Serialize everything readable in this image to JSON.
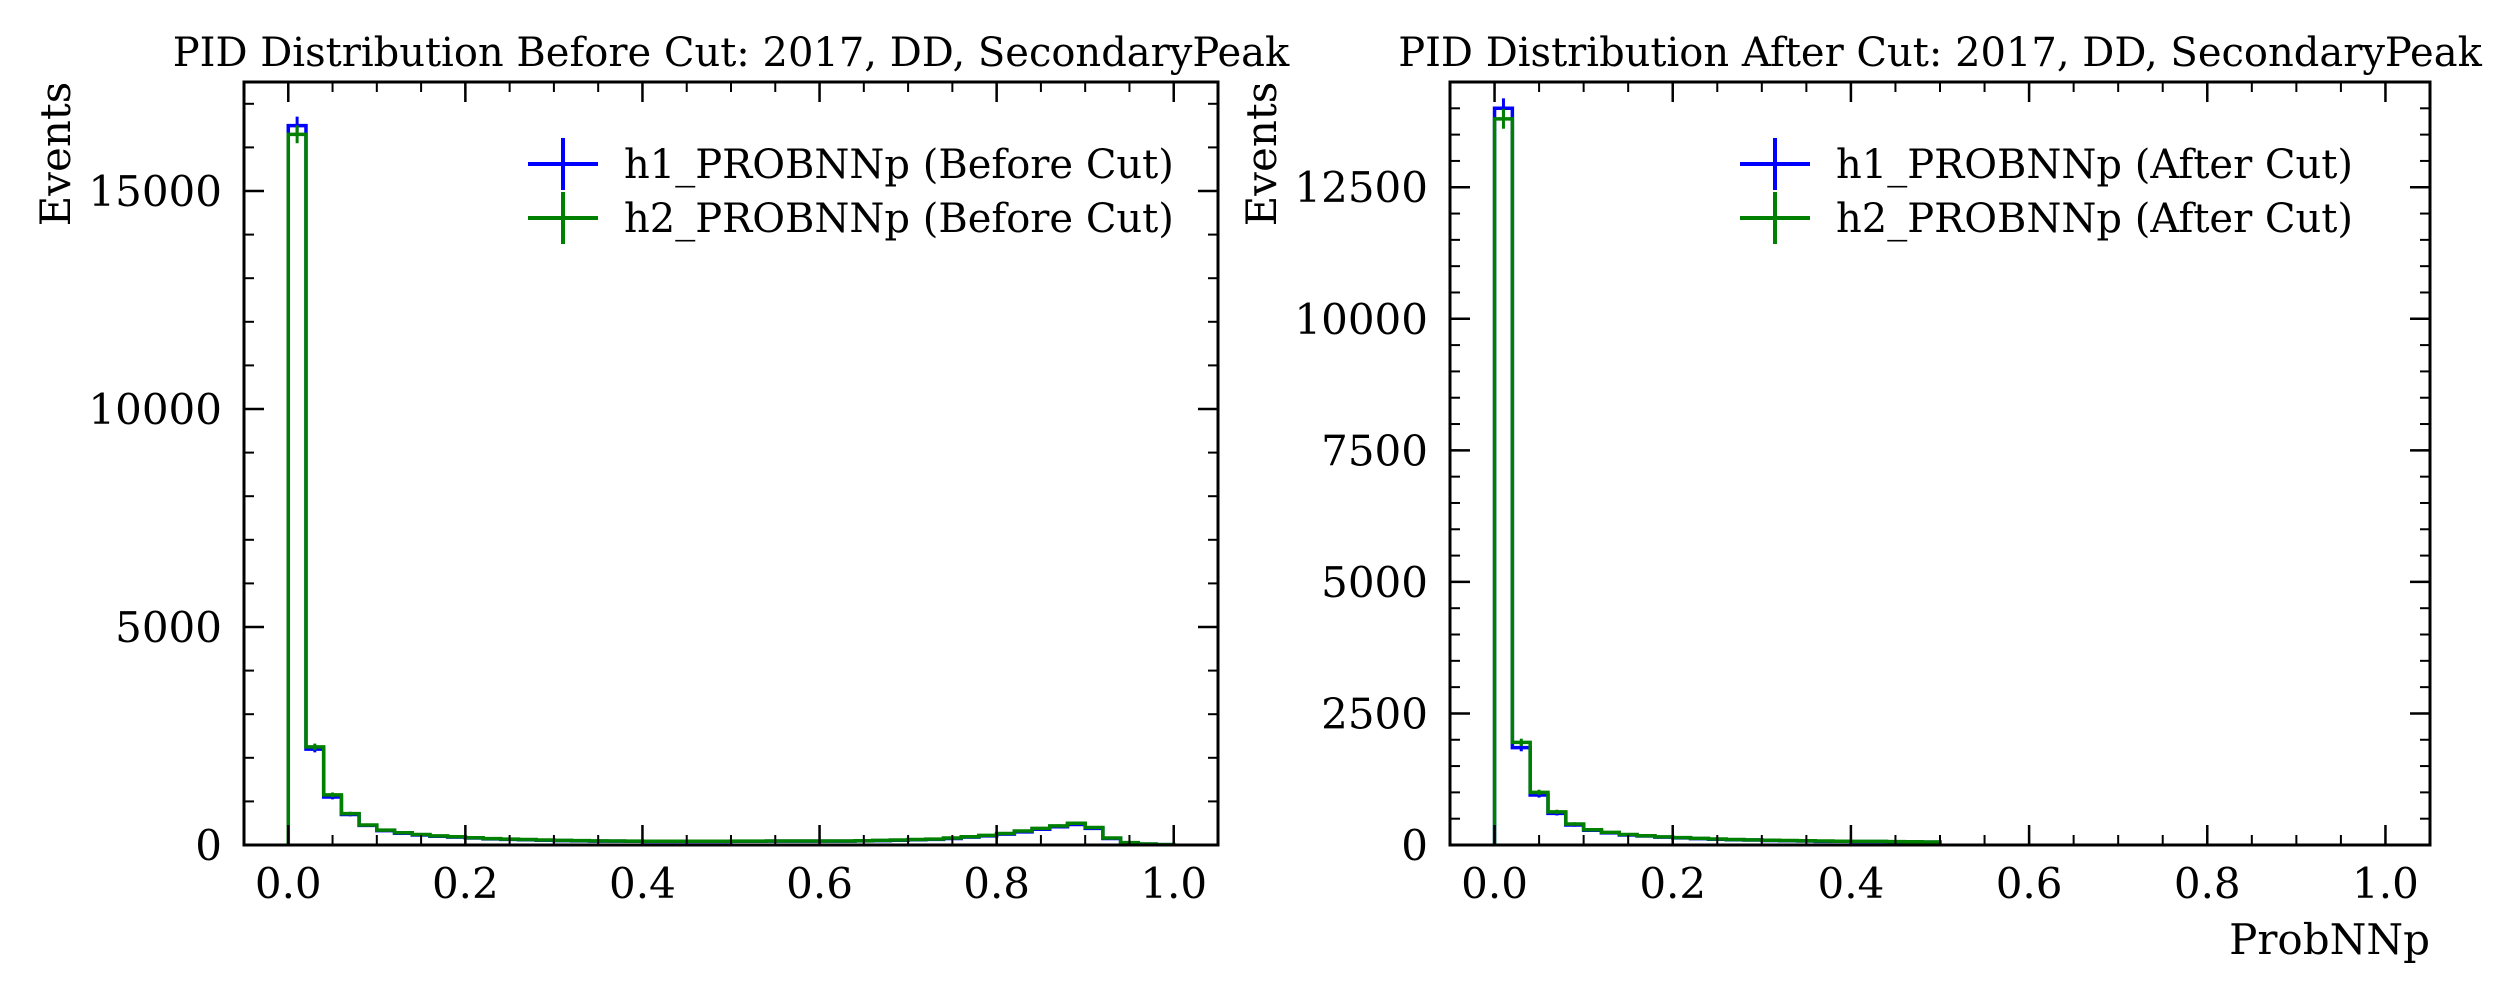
{
  "colors": {
    "h1": "#0000ff",
    "h2": "#008000",
    "axis": "#000000"
  },
  "chart_data": [
    {
      "type": "histogram",
      "title": "PID Distribution Before Cut: 2017, DD, SecondaryPeak",
      "xlabel": "",
      "ylabel": "Events",
      "xlim": [
        -0.05,
        1.05
      ],
      "ylim": [
        0,
        17500
      ],
      "xticks": [
        0.0,
        0.2,
        0.4,
        0.6,
        0.8,
        1.0
      ],
      "xtick_labels": [
        "0.0",
        "0.2",
        "0.4",
        "0.6",
        "0.8",
        "1.0"
      ],
      "yticks": [
        0,
        5000,
        10000,
        15000
      ],
      "ytick_labels": [
        "0",
        "5000",
        "10000",
        "15000"
      ],
      "legend_position": "top-right",
      "bin_edges": [
        0.0,
        0.02,
        0.04,
        0.06,
        0.08,
        0.1,
        0.12,
        0.14,
        0.16,
        0.18,
        0.2,
        0.22,
        0.24,
        0.26,
        0.28,
        0.3,
        0.32,
        0.34,
        0.36,
        0.38,
        0.4,
        0.42,
        0.44,
        0.46,
        0.48,
        0.5,
        0.52,
        0.54,
        0.56,
        0.58,
        0.6,
        0.62,
        0.64,
        0.66,
        0.68,
        0.7,
        0.72,
        0.74,
        0.76,
        0.78,
        0.8,
        0.82,
        0.84,
        0.86,
        0.88,
        0.9,
        0.92,
        0.94,
        0.96,
        0.98,
        1.0
      ],
      "series": [
        {
          "name": "h1_PROBNNp (Before Cut)",
          "color_key": "h1",
          "values": [
            16500,
            2200,
            1100,
            700,
            450,
            330,
            270,
            230,
            200,
            180,
            160,
            140,
            130,
            120,
            110,
            100,
            95,
            90,
            90,
            85,
            80,
            80,
            80,
            80,
            80,
            85,
            85,
            90,
            90,
            90,
            90,
            90,
            95,
            100,
            110,
            120,
            130,
            150,
            180,
            210,
            250,
            300,
            360,
            420,
            470,
            380,
            150,
            50,
            20,
            10
          ]
        },
        {
          "name": "h2_PROBNNp (Before Cut)",
          "color_key": "h2",
          "values": [
            16300,
            2250,
            1150,
            720,
            460,
            340,
            280,
            240,
            210,
            190,
            165,
            145,
            135,
            125,
            115,
            105,
            100,
            95,
            92,
            88,
            85,
            85,
            85,
            85,
            85,
            88,
            88,
            92,
            92,
            92,
            92,
            92,
            98,
            105,
            115,
            125,
            135,
            160,
            190,
            220,
            265,
            320,
            380,
            440,
            500,
            400,
            160,
            55,
            22,
            10
          ]
        }
      ]
    },
    {
      "type": "histogram",
      "title": "PID Distribution After Cut: 2017, DD, SecondaryPeak",
      "xlabel": "ProbNNp",
      "ylabel": "Events",
      "xlim": [
        -0.05,
        1.05
      ],
      "ylim": [
        0,
        14500
      ],
      "xticks": [
        0.0,
        0.2,
        0.4,
        0.6,
        0.8,
        1.0
      ],
      "xtick_labels": [
        "0.0",
        "0.2",
        "0.4",
        "0.6",
        "0.8",
        "1.0"
      ],
      "yticks": [
        0,
        2500,
        5000,
        7500,
        10000,
        12500
      ],
      "ytick_labels": [
        "0",
        "2500",
        "5000",
        "7500",
        "10000",
        "12500"
      ],
      "legend_position": "top-right",
      "bin_edges": [
        0.0,
        0.02,
        0.04,
        0.06,
        0.08,
        0.1,
        0.12,
        0.14,
        0.16,
        0.18,
        0.2,
        0.22,
        0.24,
        0.26,
        0.28,
        0.3,
        0.32,
        0.34,
        0.36,
        0.38,
        0.4,
        0.42,
        0.44,
        0.46,
        0.48,
        0.5
      ],
      "series": [
        {
          "name": "h1_PROBNNp (After Cut)",
          "color_key": "h1",
          "values": [
            14000,
            1850,
            950,
            600,
            380,
            280,
            230,
            190,
            170,
            150,
            135,
            120,
            110,
            100,
            95,
            85,
            80,
            75,
            70,
            70,
            65,
            65,
            60,
            60,
            55
          ]
        },
        {
          "name": "h2_PROBNNp (After Cut)",
          "color_key": "h2",
          "values": [
            13800,
            1950,
            1000,
            630,
            400,
            290,
            240,
            200,
            175,
            155,
            140,
            125,
            115,
            105,
            98,
            90,
            85,
            80,
            75,
            72,
            70,
            68,
            65,
            62,
            58
          ]
        }
      ]
    }
  ]
}
